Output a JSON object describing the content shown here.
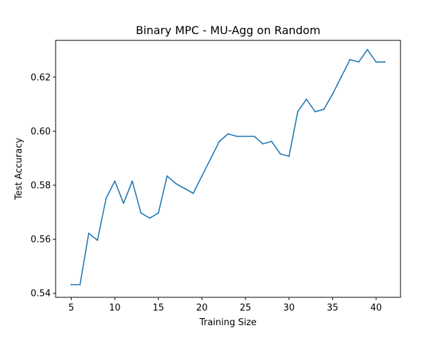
{
  "chart_data": {
    "type": "line",
    "title": "Binary MPC - MU-Agg on Random",
    "xlabel": "Training Size",
    "ylabel": "Test Accuracy",
    "xlim": [
      3.2,
      42.8
    ],
    "ylim": [
      0.5385,
      0.6336
    ],
    "x_ticks": [
      5,
      10,
      15,
      20,
      25,
      30,
      35,
      40
    ],
    "x_tick_labels": [
      "5",
      "10",
      "15",
      "20",
      "25",
      "30",
      "35",
      "40"
    ],
    "y_ticks": [
      0.54,
      0.56,
      0.58,
      0.6,
      0.62
    ],
    "y_tick_labels": [
      "0.54",
      "0.56",
      "0.58",
      "0.60",
      "0.62"
    ],
    "grid": false,
    "series": [
      {
        "color": "#1f77b4",
        "x": [
          5,
          6,
          7,
          8,
          9,
          10,
          11,
          12,
          13,
          14,
          15,
          16,
          17,
          18,
          19,
          20,
          21,
          22,
          23,
          24,
          25,
          26,
          27,
          28,
          29,
          30,
          31,
          32,
          33,
          34,
          35,
          36,
          37,
          38,
          39,
          40,
          41
        ],
        "y": [
          0.5432,
          0.5432,
          0.5622,
          0.5596,
          0.5752,
          0.5815,
          0.5733,
          0.5815,
          0.5697,
          0.5678,
          0.5697,
          0.5834,
          0.5806,
          0.5788,
          0.577,
          0.5834,
          0.5898,
          0.5962,
          0.599,
          0.5981,
          0.5981,
          0.5981,
          0.5953,
          0.5962,
          0.5916,
          0.5907,
          0.6072,
          0.6118,
          0.6072,
          0.6081,
          0.6137,
          0.6201,
          0.6265,
          0.6256,
          0.6302,
          0.6256,
          0.6256
        ]
      }
    ]
  }
}
